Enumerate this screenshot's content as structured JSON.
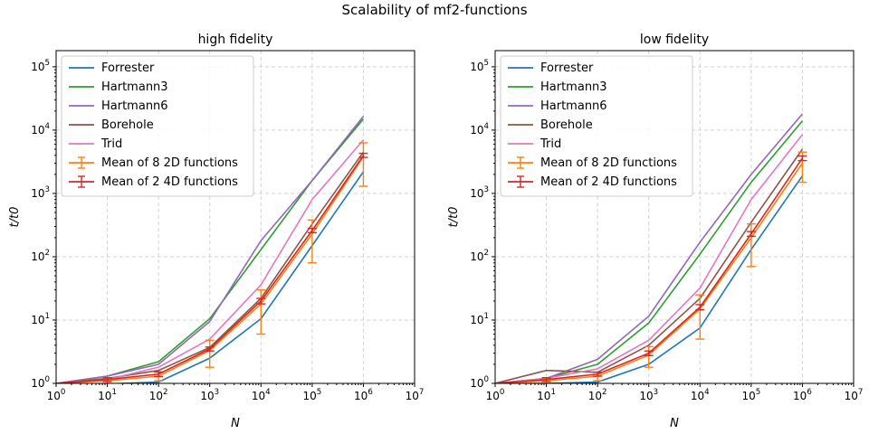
{
  "suptitle": "Scalability of mf2-functions",
  "colors": {
    "Forrester": "#1f77b4",
    "Hartmann3": "#2ca02c",
    "Hartmann6": "#9467bd",
    "Borehole": "#8c564b",
    "Trid": "#e377c2",
    "Mean of 8 2D functions": "#ff7f0e",
    "Mean of 2 4D functions": "#d62728",
    "grid": "#b0b0b0"
  },
  "chart_data": [
    {
      "type": "line",
      "title": "high fidelity",
      "xlabel": "N",
      "ylabel": "t/t0",
      "xscale": "log",
      "yscale": "log",
      "xlim": [
        1,
        10000000
      ],
      "ylim": [
        1,
        180000
      ],
      "grid": true,
      "legend_position": "top-left",
      "x": [
        1,
        10,
        100,
        1000,
        10000,
        100000,
        1000000
      ],
      "xticks": [
        "10^0",
        "10^1",
        "10^2",
        "10^3",
        "10^4",
        "10^5",
        "10^6",
        "10^7"
      ],
      "yticks": [
        "10^0",
        "10^1",
        "10^2",
        "10^3",
        "10^4",
        "10^5"
      ],
      "series": [
        {
          "name": "Forrester",
          "values": [
            1,
            0.98,
            1.05,
            2.5,
            10.5,
            150,
            2200
          ]
        },
        {
          "name": "Hartmann3",
          "values": [
            1,
            1.3,
            2.2,
            10.5,
            130,
            1600,
            15000
          ]
        },
        {
          "name": "Hartmann6",
          "values": [
            1,
            1.3,
            2.0,
            9.5,
            180,
            1600,
            16500
          ]
        },
        {
          "name": "Borehole",
          "values": [
            1,
            1.2,
            1.6,
            3.7,
            22,
            330,
            4500
          ]
        },
        {
          "name": "Trid",
          "values": [
            1,
            1.15,
            1.8,
            5.0,
            36,
            800,
            7000
          ]
        },
        {
          "name": "Mean of 8 2D functions",
          "values": [
            1,
            1.1,
            1.3,
            3.3,
            18,
            230,
            3800
          ],
          "errors": [
            0,
            0.12,
            0.2,
            1.5,
            12,
            150,
            2500
          ],
          "errorbars": true
        },
        {
          "name": "Mean of 2 4D functions",
          "values": [
            1,
            1.15,
            1.4,
            3.5,
            20,
            260,
            4000
          ],
          "errors": [
            0,
            0.08,
            0.12,
            0.25,
            2,
            20,
            300
          ],
          "errorbars": true
        }
      ]
    },
    {
      "type": "line",
      "title": "low fidelity",
      "xlabel": "N",
      "ylabel": "t/t0",
      "xscale": "log",
      "yscale": "log",
      "xlim": [
        1,
        10000000
      ],
      "ylim": [
        1,
        180000
      ],
      "grid": true,
      "legend_position": "top-left",
      "x": [
        1,
        10,
        100,
        1000,
        10000,
        100000,
        1000000
      ],
      "xticks": [
        "10^0",
        "10^1",
        "10^2",
        "10^3",
        "10^4",
        "10^5",
        "10^6",
        "10^7"
      ],
      "yticks": [
        "10^0",
        "10^1",
        "10^2",
        "10^3",
        "10^4",
        "10^5"
      ],
      "series": [
        {
          "name": "Forrester",
          "values": [
            1,
            1.0,
            1.05,
            2.0,
            7.5,
            130,
            1900
          ]
        },
        {
          "name": "Hartmann3",
          "values": [
            1,
            1.2,
            2.0,
            9.0,
            110,
            1500,
            14000
          ]
        },
        {
          "name": "Hartmann6",
          "values": [
            1,
            1.2,
            2.4,
            11.5,
            170,
            2000,
            18000
          ]
        },
        {
          "name": "Borehole",
          "values": [
            1,
            1.6,
            1.5,
            4.0,
            22,
            350,
            5000
          ]
        },
        {
          "name": "Trid",
          "values": [
            1,
            1.2,
            1.7,
            4.8,
            32,
            800,
            8500
          ]
        },
        {
          "name": "Mean of 8 2D functions",
          "values": [
            1,
            1.1,
            1.3,
            2.8,
            15,
            200,
            3000
          ],
          "errors": [
            0,
            0.1,
            0.2,
            1.0,
            10,
            130,
            1500
          ],
          "errorbars": true
        },
        {
          "name": "Mean of 2 4D functions",
          "values": [
            1,
            1.15,
            1.4,
            3.0,
            16,
            230,
            3600
          ],
          "errors": [
            0,
            0.08,
            0.1,
            0.25,
            1.5,
            20,
            300
          ],
          "errorbars": true
        }
      ]
    }
  ]
}
